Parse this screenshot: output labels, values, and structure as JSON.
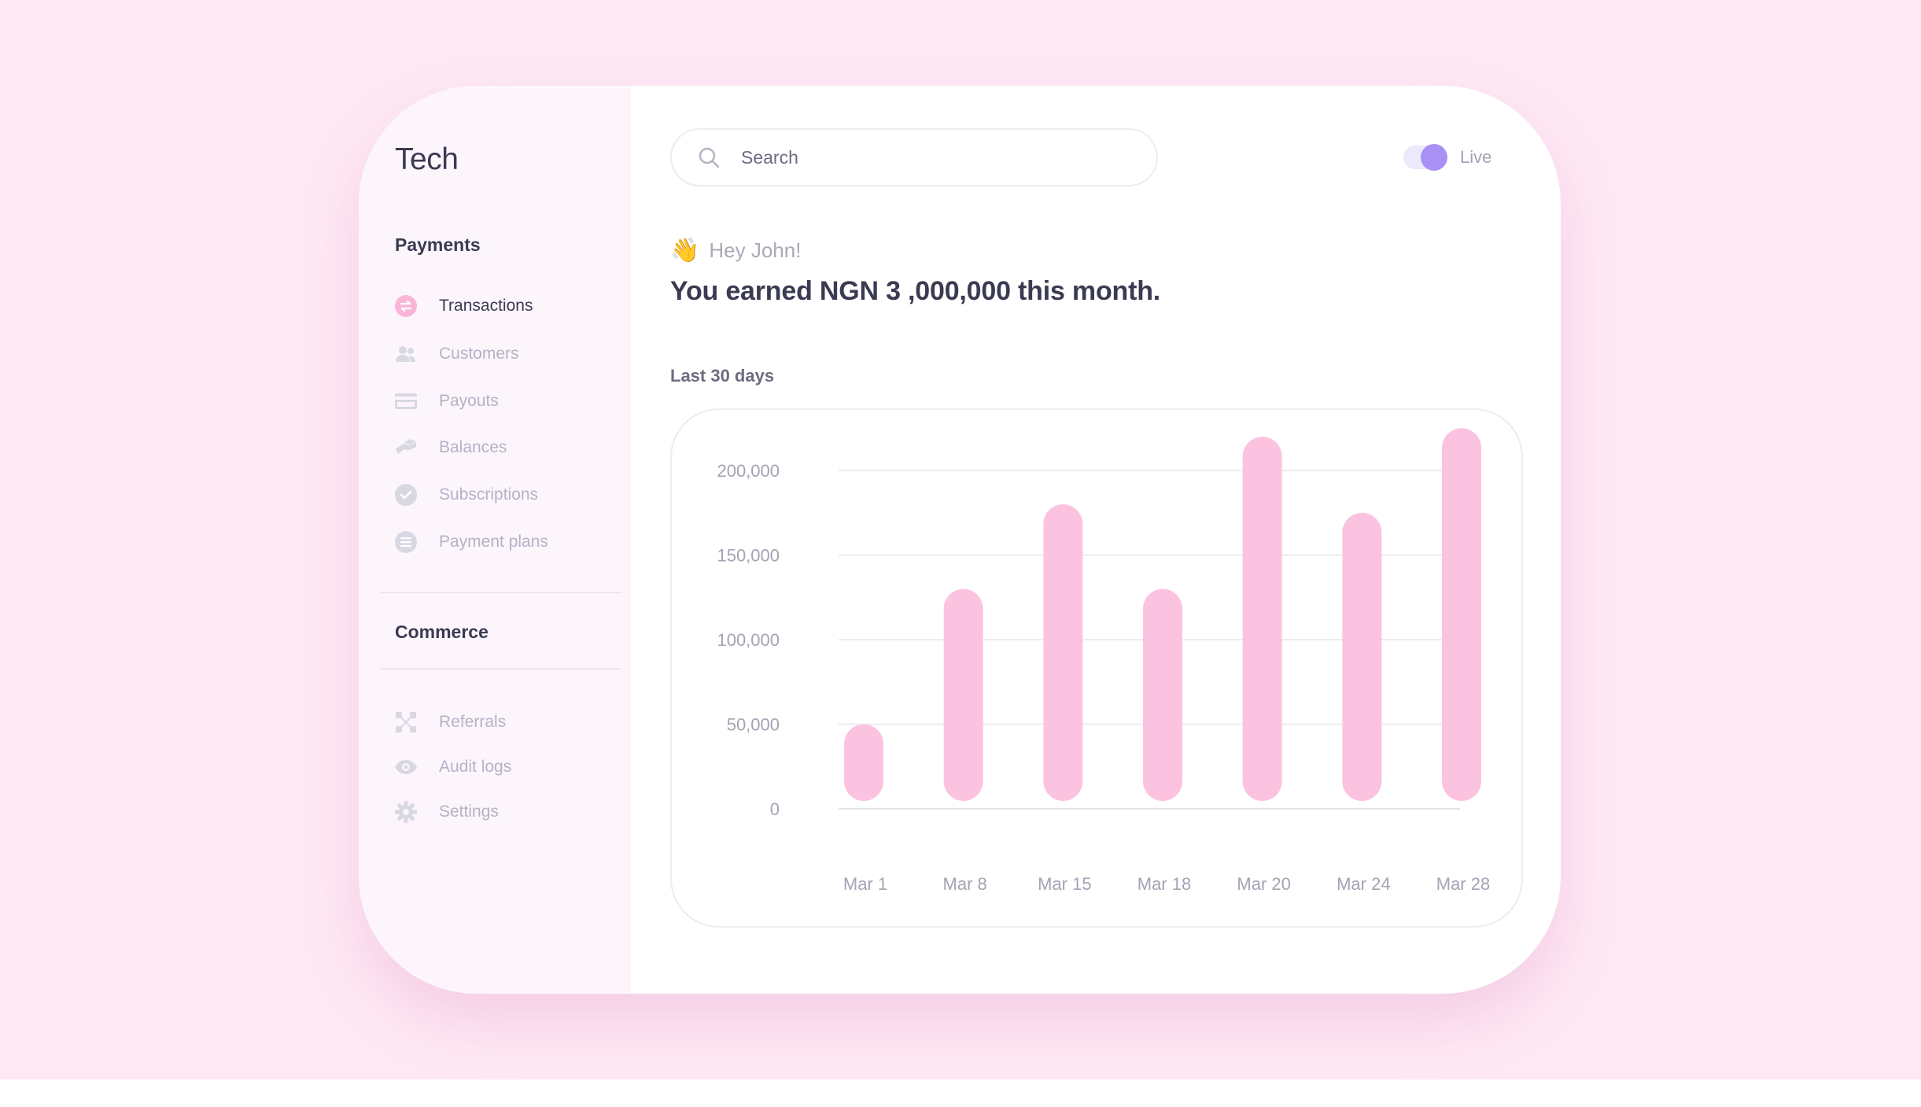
{
  "brand": "Tech",
  "sidebar": {
    "payments_title": "Payments",
    "payments_items": [
      {
        "label": "Transactions",
        "icon": "transactions-icon",
        "active": true
      },
      {
        "label": "Customers",
        "icon": "customers-icon"
      },
      {
        "label": "Payouts",
        "icon": "card-icon"
      },
      {
        "label": "Balances",
        "icon": "balances-icon"
      },
      {
        "label": "Subscriptions",
        "icon": "check-circle-icon"
      },
      {
        "label": "Payment plans",
        "icon": "list-icon"
      }
    ],
    "commerce_title": "Commerce",
    "commerce_items": [
      {
        "label": "Referrals",
        "icon": "referrals-icon"
      },
      {
        "label": "Audit logs",
        "icon": "eye-icon"
      },
      {
        "label": "Settings",
        "icon": "gear-icon"
      }
    ]
  },
  "header": {
    "search_placeholder": "Search",
    "live_label": "Live",
    "live_on": true
  },
  "greeting": {
    "emoji": "👋",
    "text": "Hey John!",
    "headline": "You earned NGN 3 ,000,000 this month."
  },
  "period_label": "Last 30 days",
  "colors": {
    "bar": "#fcc3e0",
    "accent": "#a990f5",
    "active_icon": "#f9b6d8",
    "text_dark": "#3a3b52",
    "text_muted": "#b3b3c4",
    "background": "#fee8f4"
  },
  "chart_data": {
    "type": "bar",
    "categories": [
      "Mar 1",
      "Mar 8",
      "Mar 15",
      "Mar 18",
      "Mar 20",
      "Mar 24",
      "Mar 28"
    ],
    "values": [
      50000,
      130000,
      180000,
      130000,
      220000,
      175000,
      225000
    ],
    "yticks": [
      "200,000",
      "150,000",
      "100,000",
      "50,000",
      "0"
    ],
    "ylim": [
      0,
      200000
    ],
    "grid": true
  }
}
